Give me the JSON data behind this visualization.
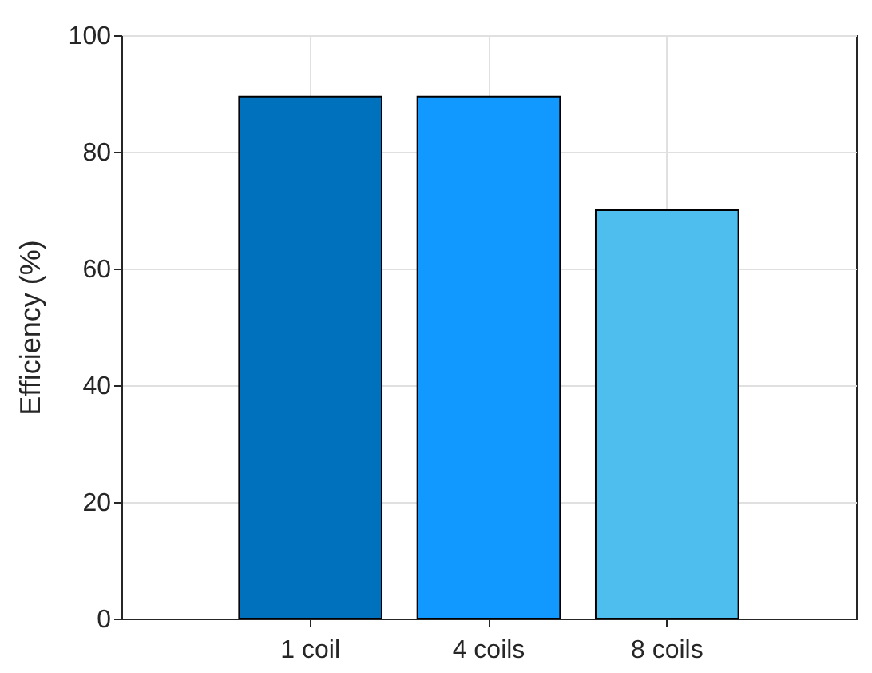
{
  "chart_data": {
    "type": "bar",
    "ylabel": "Efficiency (%)",
    "categories": [
      "1 coil",
      "4 coils",
      "8 coils"
    ],
    "values": [
      89.5,
      89.5,
      70
    ],
    "colors": [
      "#0072bd",
      "#1199ff",
      "#4dbeee"
    ],
    "ylim": [
      0,
      100
    ],
    "yticks": [
      0,
      20,
      40,
      60,
      80,
      100
    ],
    "grid": true
  }
}
